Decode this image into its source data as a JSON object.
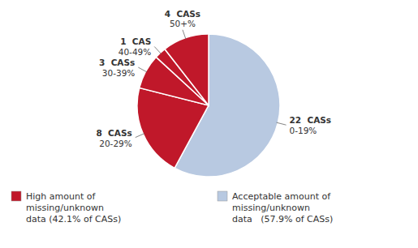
{
  "chart_data": {
    "type": "pie",
    "categories": [
      "0-19%",
      "20-29%",
      "30-39%",
      "40-49%",
      "50+%"
    ],
    "values": [
      22,
      8,
      3,
      1,
      4
    ],
    "value_labels": [
      "22  CASs",
      "8  CASs",
      "3  CASs",
      "1  CAS",
      "4  CASs"
    ],
    "colors": [
      "#b8c9e1",
      "#c0182a",
      "#c0182a",
      "#c0182a",
      "#c0182a"
    ],
    "annotations": [
      {
        "text": "High amount of\nmissing/unknown\ndata (42.1% of CASs)",
        "color": "#c0182a"
      },
      {
        "text": "Acceptable amount of\nmissing/unknown\ndata   (57.9% of CASs)",
        "color": "#b8c9e1"
      }
    ]
  }
}
